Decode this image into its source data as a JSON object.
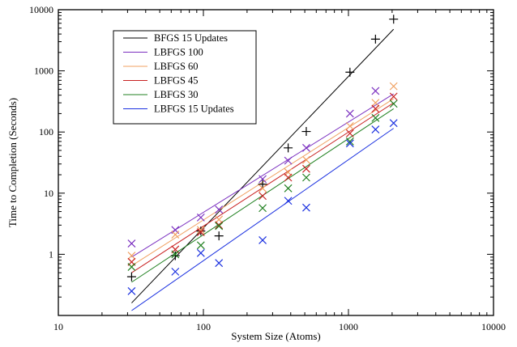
{
  "chart_data": {
    "type": "scatter",
    "title": "",
    "xlabel": "System Size (Atoms)",
    "ylabel": "Time to Completion (Seconds)",
    "xscale": "log",
    "yscale": "log",
    "xlim": [
      10,
      10000
    ],
    "ylim": [
      0.1,
      10000
    ],
    "x_ticks": [
      10,
      100,
      1000,
      10000
    ],
    "x_tick_labels": [
      "10",
      "100",
      "1000",
      "10000"
    ],
    "y_ticks": [
      1,
      10,
      100,
      1000,
      10000
    ],
    "y_tick_labels": [
      "1",
      "10",
      "100",
      "1000",
      "10000"
    ],
    "legend_position": "top-left",
    "series": [
      {
        "name": "BFGS 15 Updates",
        "color": "#000000",
        "marker": "plus",
        "x": [
          32,
          64,
          96,
          128,
          256,
          384,
          512,
          1024,
          1536,
          2048
        ],
        "y": [
          0.43,
          0.95,
          2.4,
          2.0,
          14,
          55,
          102,
          950,
          3300,
          7000
        ],
        "fit": [
          [
            32,
            0.16
          ],
          [
            2048,
            4800
          ]
        ]
      },
      {
        "name": "LBFGS 100",
        "color": "#7b30c0",
        "marker": "x",
        "x": [
          32,
          64,
          96,
          128,
          256,
          384,
          512,
          1024,
          1536
        ],
        "y": [
          1.5,
          2.5,
          4.0,
          5.4,
          17,
          34,
          55,
          200,
          470
        ],
        "fit": [
          [
            32,
            0.9
          ],
          [
            2048,
            420
          ]
        ]
      },
      {
        "name": "LBFGS 60",
        "color": "#f0a060",
        "marker": "x",
        "x": [
          32,
          64,
          96,
          128,
          256,
          384,
          512,
          1024,
          1536,
          2048
        ],
        "y": [
          0.95,
          2.1,
          2.5,
          3.7,
          12,
          22,
          35,
          125,
          300,
          560
        ],
        "fit": [
          [
            32,
            0.65
          ],
          [
            2048,
            350
          ]
        ]
      },
      {
        "name": "LBFGS 45",
        "color": "#c82020",
        "marker": "x",
        "x": [
          32,
          64,
          96,
          128,
          256,
          384,
          512,
          1024,
          1536,
          2048
        ],
        "y": [
          0.75,
          1.2,
          2.3,
          3.0,
          9,
          18,
          25,
          95,
          240,
          380
        ],
        "fit": [
          [
            32,
            0.5
          ],
          [
            2048,
            300
          ]
        ]
      },
      {
        "name": "LBFGS 30",
        "color": "#208020",
        "marker": "x",
        "x": [
          32,
          64,
          96,
          128,
          256,
          384,
          512,
          1024,
          1536,
          2048
        ],
        "y": [
          0.62,
          1.0,
          1.4,
          2.9,
          5.7,
          12,
          18,
          70,
          170,
          290
        ],
        "fit": [
          [
            32,
            0.35
          ],
          [
            2048,
            240
          ]
        ]
      },
      {
        "name": "LBFGS 15 Updates",
        "color": "#1a30e0",
        "marker": "x",
        "x": [
          32,
          64,
          96,
          128,
          256,
          384,
          512,
          1024,
          1536,
          2048
        ],
        "y": [
          0.25,
          0.52,
          1.05,
          0.72,
          1.7,
          7.5,
          5.8,
          65,
          110,
          140
        ],
        "fit": [
          [
            32,
            0.12
          ],
          [
            2048,
            115
          ]
        ]
      }
    ]
  }
}
